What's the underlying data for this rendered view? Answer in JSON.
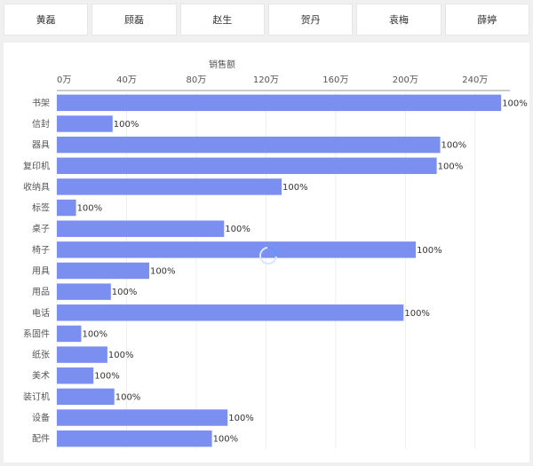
{
  "tabs": [
    {
      "label": "黄磊"
    },
    {
      "label": "顾磊"
    },
    {
      "label": "赵生"
    },
    {
      "label": "贺丹"
    },
    {
      "label": "袁梅"
    },
    {
      "label": "薛婷"
    }
  ],
  "colors": {
    "bar": "#7b8ff0",
    "axis_text": "#555555",
    "grid": "#eeeeee",
    "spinner": "#5b8ff9"
  },
  "loading_indicator": "spinner-icon",
  "chart_data": {
    "type": "bar",
    "orientation": "horizontal",
    "xlabel": "销售额",
    "xlabel_position": "top",
    "xlim": [
      0,
      2600000
    ],
    "tick_values": [
      0,
      400000,
      800000,
      1200000,
      1600000,
      2000000,
      2400000
    ],
    "tick_labels": [
      "0万",
      "40万",
      "80万",
      "120万",
      "160万",
      "200万",
      "240万"
    ],
    "grid": true,
    "categories": [
      "书架",
      "信封",
      "器具",
      "复印机",
      "收纳具",
      "标签",
      "桌子",
      "椅子",
      "用具",
      "用品",
      "电话",
      "系固件",
      "纸张",
      "美术",
      "装订机",
      "设备",
      "配件"
    ],
    "values": [
      2550000,
      320000,
      2200000,
      2180000,
      1290000,
      110000,
      960000,
      2060000,
      530000,
      310000,
      1990000,
      140000,
      290000,
      210000,
      330000,
      980000,
      890000
    ],
    "data_labels": [
      "100%",
      "100%",
      "100%",
      "100%",
      "100%",
      "100%",
      "100%",
      "100%",
      "100%",
      "100%",
      "100%",
      "100%",
      "100%",
      "100%",
      "100%",
      "100%",
      "100%"
    ]
  }
}
